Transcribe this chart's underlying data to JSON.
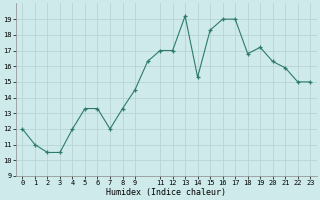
{
  "x": [
    0,
    1,
    2,
    3,
    4,
    5,
    6,
    7,
    8,
    9,
    10,
    11,
    12,
    13,
    14,
    15,
    16,
    17,
    18,
    19,
    20,
    21,
    22,
    23
  ],
  "y": [
    12,
    11,
    10.5,
    10.5,
    12,
    13.3,
    13.3,
    12,
    13.3,
    14.5,
    16.3,
    17,
    17,
    19.2,
    15.3,
    18.3,
    19,
    19,
    16.8,
    17.2,
    16.3,
    15.9,
    15,
    15
  ],
  "xlabel": "Humidex (Indice chaleur)",
  "bg_color": "#ceeaea",
  "grid_color": "#b8d4d4",
  "line_color": "#2e7b6b",
  "marker_color": "#2e7b6b",
  "ylim": [
    9,
    20
  ],
  "xlim": [
    -0.5,
    23.5
  ],
  "yticks": [
    9,
    10,
    11,
    12,
    13,
    14,
    15,
    16,
    17,
    18,
    19
  ],
  "xticks": [
    0,
    1,
    2,
    3,
    4,
    5,
    6,
    7,
    8,
    9,
    11,
    12,
    13,
    14,
    15,
    16,
    17,
    18,
    19,
    20,
    21,
    22,
    23
  ],
  "xtick_labels": [
    "0",
    "1",
    "2",
    "3",
    "4",
    "5",
    "6",
    "7",
    "8",
    "9",
    "11",
    "12",
    "13",
    "14",
    "15",
    "16",
    "17",
    "18",
    "19",
    "20",
    "21",
    "22",
    "23"
  ]
}
